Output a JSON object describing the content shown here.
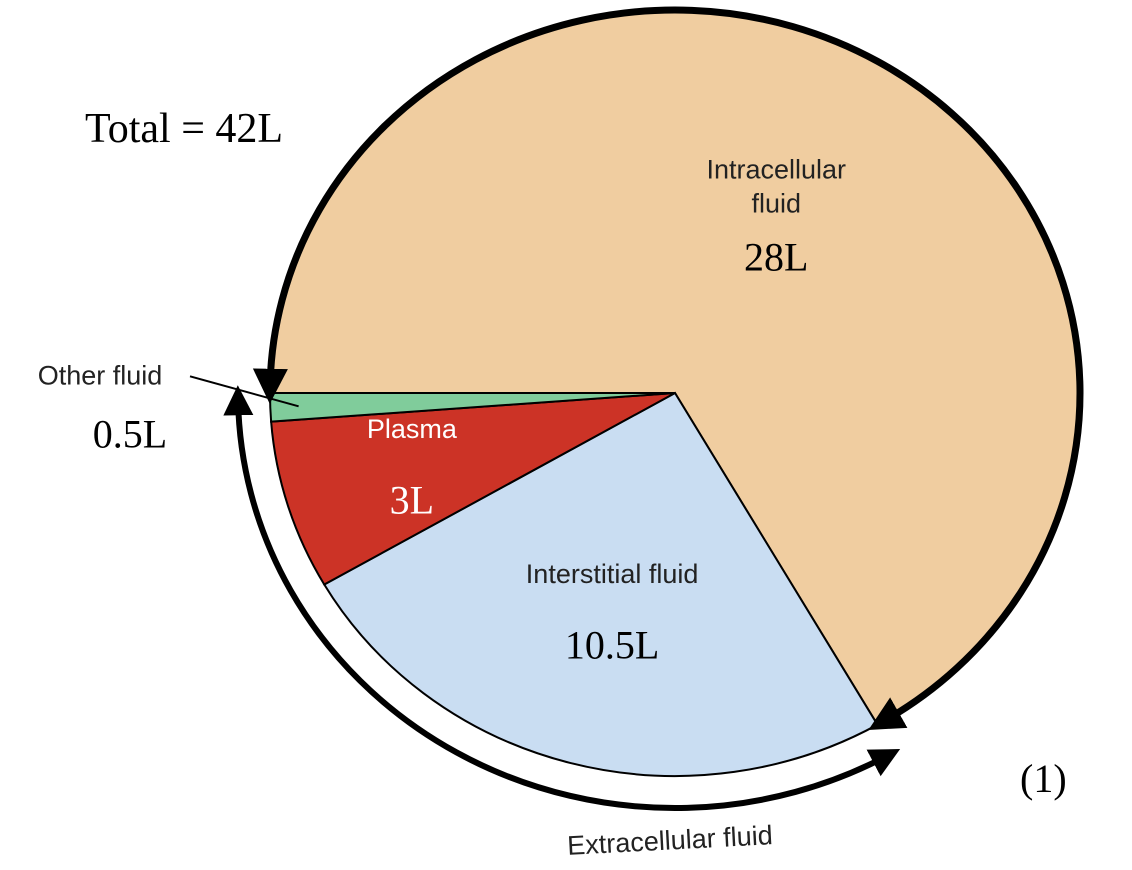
{
  "chart_data": {
    "type": "pie",
    "title": "Total = 42L",
    "categories": [
      "Intracellular fluid",
      "Interstitial fluid",
      "Plasma",
      "Other fluid"
    ],
    "values": [
      28,
      10.5,
      3,
      0.5
    ],
    "value_labels": [
      "28L",
      "10.5L",
      "3L",
      "0.5L"
    ],
    "colors": [
      "#f0cda0",
      "#c9ddf2",
      "#cc3326",
      "#80cc9b"
    ],
    "annotations": [
      "Extracellular fluid",
      "(1)"
    ]
  }
}
